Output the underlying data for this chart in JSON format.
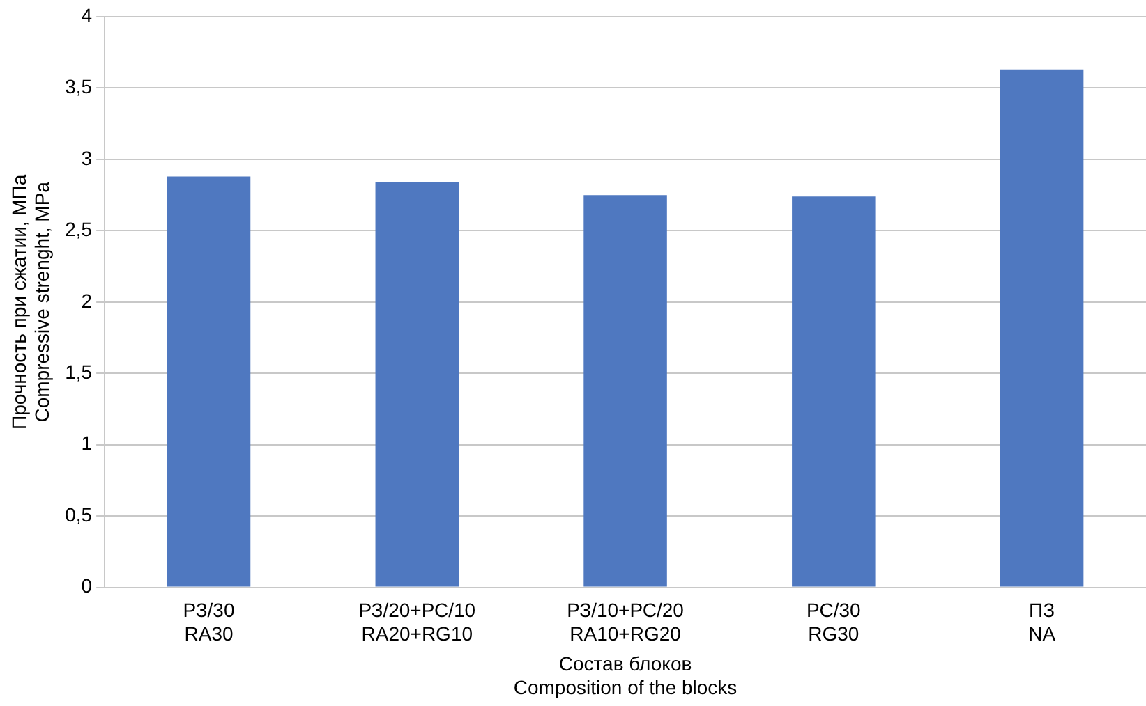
{
  "chart_data": {
    "type": "bar",
    "xlabel": "Состав блоков\nComposition of the blocks",
    "ylabel": "Прочность при сжатии, МПа\nCompressive strenght, MPa",
    "categories": [
      "РЗ/30\nRA30",
      "РЗ/20+РС/10\nRA20+RG10",
      "РЗ/10+РС/20\nRA10+RG20",
      "РС/30\nRG30",
      "ПЗ\nNA"
    ],
    "values": [
      2.88,
      2.84,
      2.75,
      2.74,
      3.63
    ],
    "color": "#4f78c0",
    "ylim": [
      0,
      4
    ],
    "yticks": [
      0,
      {
        "value": 0.5,
        "label": "0,5"
      },
      1,
      {
        "value": 1.5,
        "label": "1,5"
      },
      2,
      {
        "value": 2.5,
        "label": "2,5"
      },
      3,
      {
        "value": 3.5,
        "label": "3,5"
      },
      4
    ],
    "grid": "y",
    "legend": false
  }
}
